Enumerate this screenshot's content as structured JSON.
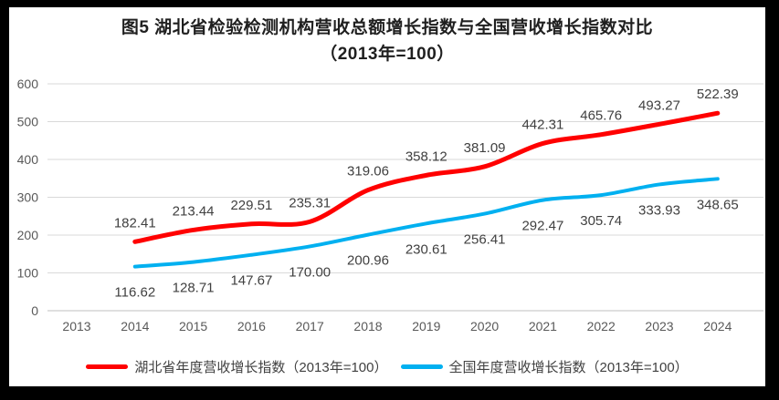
{
  "canvas": {
    "frame_color": "#000000",
    "background": "#FFFFFF"
  },
  "chart_data": {
    "type": "line",
    "title": "图5 湖北省检验检测机构营收总额增长指数与全国营收增长指数对比",
    "subtitle": "（2013年=100）",
    "categories": [
      "2013",
      "2014",
      "2015",
      "2016",
      "2017",
      "2018",
      "2019",
      "2020",
      "2021",
      "2022",
      "2023",
      "2024"
    ],
    "yticks": [
      600,
      500,
      400,
      300,
      200,
      100,
      0
    ],
    "ylim": [
      0,
      600
    ],
    "grid": true,
    "legend_position": "bottom",
    "series": [
      {
        "name": "湖北省年度营收增长指数（2013年=100）",
        "color": "#FF0000",
        "values": [
          null,
          182.41,
          213.44,
          229.51,
          235.31,
          319.06,
          358.12,
          381.09,
          442.31,
          465.76,
          493.27,
          522.39
        ]
      },
      {
        "name": "全国年度营收增长指数（2013年=100）",
        "color": "#00B0F0",
        "values": [
          null,
          116.62,
          128.71,
          147.67,
          170.0,
          200.96,
          230.61,
          256.41,
          292.47,
          305.74,
          333.93,
          348.65
        ]
      }
    ],
    "colors": {
      "gridline": "#D9D9D9",
      "axis_line": "#BFBFBF",
      "tick_label": "#595959",
      "data_label": "#404040",
      "title": "#1F1F1F",
      "legend_text": "#404040"
    }
  }
}
